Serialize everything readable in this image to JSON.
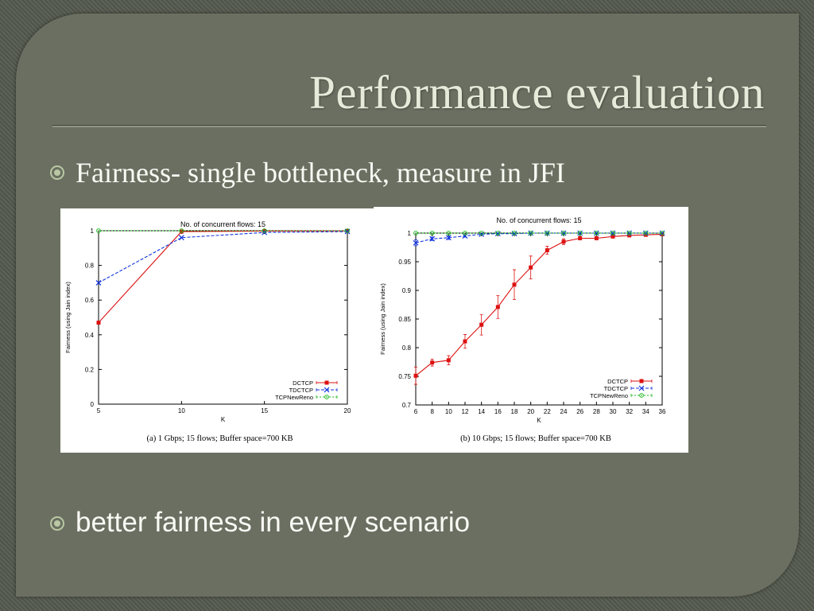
{
  "slide": {
    "title": "Performance evaluation",
    "bullets": [
      "Fairness- single bottleneck, measure in JFI",
      "better fairness in every scenario"
    ]
  },
  "colors": {
    "DCTCP": "#dd1111",
    "TDCTCP": "#1133dd",
    "TCPNewReno": "#22bb22"
  },
  "chart_data": [
    {
      "type": "line",
      "title": "No. of concurrent flows: 15",
      "caption": "(a) 1 Gbps; 15 flows; Buffer space=700 KB",
      "xlabel": "K",
      "ylabel": "Fairness (using Jain index)",
      "xlim": [
        5,
        20
      ],
      "ylim": [
        0,
        1
      ],
      "xticks": [
        "5",
        "10",
        "15",
        "20"
      ],
      "yticks": [
        "0",
        "0.2",
        "0.4",
        "0.6",
        "0.8",
        "1"
      ],
      "legend_position": "bottom-right",
      "series": [
        {
          "name": "DCTCP",
          "style": "solid",
          "marker": "square",
          "x": [
            5,
            10,
            15,
            20
          ],
          "y": [
            0.47,
            0.995,
            0.998,
            0.999
          ],
          "err": [
            0,
            0,
            0,
            0
          ]
        },
        {
          "name": "TDCTCP",
          "style": "dashed",
          "marker": "x",
          "x": [
            5,
            10,
            15,
            20
          ],
          "y": [
            0.7,
            0.96,
            0.99,
            0.995
          ],
          "err": [
            0,
            0,
            0,
            0
          ]
        },
        {
          "name": "TCPNewReno",
          "style": "dotted",
          "marker": "circle",
          "x": [
            5,
            10,
            15,
            20
          ],
          "y": [
            1.0,
            1.0,
            1.0,
            1.0
          ],
          "err": [
            0,
            0,
            0,
            0
          ]
        }
      ]
    },
    {
      "type": "line",
      "title": "No. of concurrent flows: 15",
      "caption": "(b) 10 Gbps; 15 flows; Buffer space=700 KB",
      "xlabel": "K",
      "ylabel": "Fairness (using Jain index)",
      "xlim": [
        6,
        36
      ],
      "ylim": [
        0.7,
        1
      ],
      "xticks": [
        "6",
        "8",
        "10",
        "12",
        "14",
        "16",
        "18",
        "20",
        "22",
        "24",
        "26",
        "28",
        "30",
        "32",
        "34",
        "36"
      ],
      "yticks": [
        "0.7",
        "0.75",
        "0.8",
        "0.85",
        "0.9",
        "0.95",
        "1"
      ],
      "legend_position": "bottom-right",
      "series": [
        {
          "name": "DCTCP",
          "style": "solid",
          "marker": "square",
          "x": [
            6,
            8,
            10,
            12,
            14,
            16,
            18,
            20,
            22,
            24,
            26,
            28,
            30,
            32,
            34,
            36
          ],
          "y": [
            0.751,
            0.774,
            0.778,
            0.811,
            0.84,
            0.871,
            0.91,
            0.94,
            0.97,
            0.985,
            0.991,
            0.991,
            0.994,
            0.996,
            0.997,
            0.998
          ],
          "err": [
            0.015,
            0.006,
            0.008,
            0.012,
            0.018,
            0.02,
            0.026,
            0.02,
            0.007,
            0.005,
            0.003,
            0.003,
            0.002,
            0.002,
            0.002,
            0.001
          ]
        },
        {
          "name": "TDCTCP",
          "style": "dashed",
          "marker": "x",
          "x": [
            6,
            8,
            10,
            12,
            14,
            16,
            18,
            20,
            22,
            24,
            26,
            28,
            30,
            32,
            34,
            36
          ],
          "y": [
            0.983,
            0.99,
            0.992,
            0.995,
            0.998,
            0.999,
            0.999,
            1.0,
            1.0,
            1.0,
            1.0,
            1.0,
            1.0,
            1.0,
            1.0,
            1.0
          ],
          "err": [
            0.005,
            0.003,
            0.003,
            0.002,
            0.001,
            0.0,
            0.0,
            0.0,
            0.0,
            0.0,
            0.0,
            0.0,
            0.0,
            0.0,
            0.0,
            0.0
          ]
        },
        {
          "name": "TCPNewReno",
          "style": "dotted",
          "marker": "circle",
          "x": [
            6,
            8,
            10,
            12,
            14,
            16,
            18,
            20,
            22,
            24,
            26,
            28,
            30,
            32,
            34,
            36
          ],
          "y": [
            1.0,
            1.0,
            1.0,
            1.0,
            1.0,
            1.0,
            1.0,
            1.0,
            1.0,
            1.0,
            1.0,
            1.0,
            1.0,
            1.0,
            1.0,
            1.0
          ],
          "err": [
            0,
            0,
            0,
            0,
            0,
            0,
            0,
            0,
            0,
            0,
            0,
            0,
            0,
            0,
            0,
            0
          ]
        }
      ]
    }
  ]
}
